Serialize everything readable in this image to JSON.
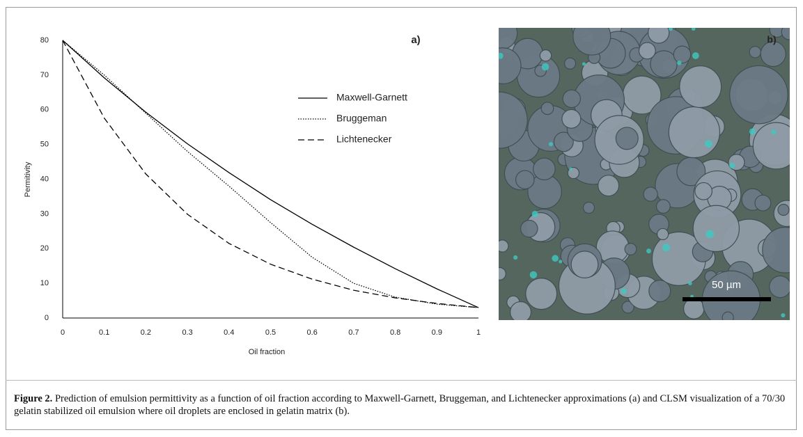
{
  "chart_data": {
    "type": "line",
    "annotation": "a)",
    "x_label": "Oil fraction",
    "y_label": "Permitivity",
    "x": [
      0,
      0.1,
      0.2,
      0.3,
      0.4,
      0.5,
      0.6,
      0.7,
      0.8,
      0.9,
      1
    ],
    "series": [
      {
        "name": "Maxwell-Garnett",
        "color": "#000000",
        "dash": "solid",
        "values": [
          80,
          69.2,
          59.3,
          50.2,
          41.9,
          34.1,
          27,
          20.4,
          14.2,
          8.4,
          3
        ]
      },
      {
        "name": "Bruggeman",
        "color": "#000000",
        "dash": "dotted",
        "values": [
          80,
          70,
          59,
          48,
          38,
          27.5,
          17.5,
          10,
          6,
          4,
          3
        ]
      },
      {
        "name": "Lichtenecker",
        "color": "#000000",
        "dash": "dashed",
        "values": [
          80,
          57.6,
          41.5,
          29.9,
          21.5,
          15.5,
          11.2,
          8,
          5.8,
          4.2,
          3
        ]
      }
    ],
    "xlim": [
      0,
      1
    ],
    "xticks": [
      0,
      0.1,
      0.2,
      0.3,
      0.4,
      0.5,
      0.6,
      0.7,
      0.8,
      0.9,
      1
    ],
    "ylim": [
      0,
      80
    ],
    "yticks": [
      0,
      10,
      20,
      30,
      40,
      50,
      60,
      70,
      80
    ],
    "grid": false,
    "legend": "upper right"
  },
  "image": {
    "label": "b)",
    "scale_bar": "50 µm"
  },
  "caption": {
    "label": "Figure 2.",
    "text": "Prediction of emulsion permittivity as a function of oil fraction according to Maxwell-Garnett, Bruggeman, and Lichtenecker approximations (a) and CLSM visualization of a 70/30 gelatin stabilized oil emulsion where oil droplets are enclosed in gelatin matrix (b)."
  }
}
